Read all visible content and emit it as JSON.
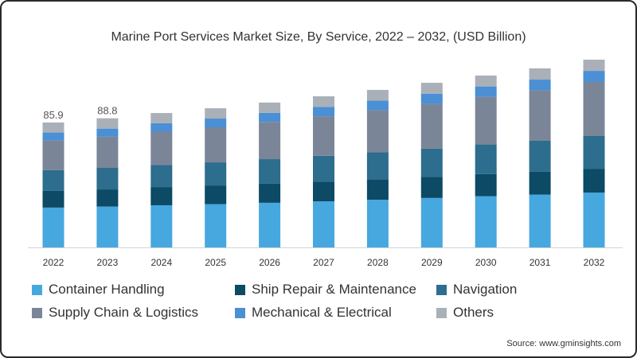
{
  "chart_data": {
    "type": "bar",
    "stacked": true,
    "title": "Marine Port Services Market Size, By Service, 2022 – 2032, (USD Billion)",
    "xlabel": "",
    "ylabel": "",
    "ylim": [
      0,
      140
    ],
    "grid": false,
    "legend_position": "bottom",
    "categories": [
      "2022",
      "2023",
      "2024",
      "2025",
      "2026",
      "2027",
      "2028",
      "2029",
      "2030",
      "2031",
      "2032"
    ],
    "series": [
      {
        "name": "Container Handling",
        "color": "#47a7df",
        "values": [
          27.4,
          28.1,
          29.0,
          29.8,
          30.7,
          31.7,
          32.8,
          34.0,
          35.2,
          36.3,
          37.7
        ]
      },
      {
        "name": "Ship Repair & Maintenance",
        "color": "#0c4a66",
        "values": [
          11.5,
          11.8,
          12.3,
          12.6,
          13.1,
          13.6,
          14.1,
          14.6,
          15.2,
          15.7,
          16.4
        ]
      },
      {
        "name": "Navigation",
        "color": "#2d6d8d",
        "values": [
          14.3,
          14.8,
          15.5,
          16.1,
          16.9,
          17.7,
          18.5,
          19.4,
          20.4,
          21.3,
          22.5
        ]
      },
      {
        "name": "Supply Chain & Logistics",
        "color": "#7a8698",
        "values": [
          20.3,
          21.4,
          22.8,
          24.1,
          25.6,
          27.2,
          28.9,
          30.8,
          32.8,
          34.8,
          37.2
        ]
      },
      {
        "name": "Mechanical & Electrical",
        "color": "#4b8fd5",
        "values": [
          5.5,
          5.6,
          5.8,
          6.0,
          6.2,
          6.4,
          6.6,
          6.8,
          7.1,
          7.3,
          7.6
        ]
      },
      {
        "name": "Others",
        "color": "#a9b0b8",
        "values": [
          6.9,
          7.1,
          7.0,
          7.1,
          7.1,
          7.3,
          7.4,
          7.6,
          7.5,
          7.7,
          7.7
        ]
      }
    ],
    "data_labels": [
      {
        "category": "2022",
        "text": "85.9"
      },
      {
        "category": "2023",
        "text": "88.8"
      }
    ]
  },
  "source": "Source: www.gminsights.com"
}
